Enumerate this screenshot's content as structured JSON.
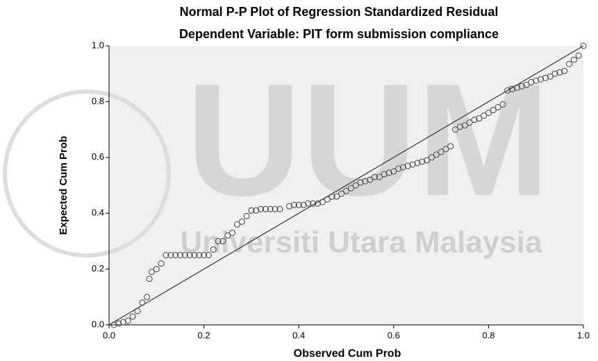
{
  "chart_data": {
    "type": "scatter",
    "title": "Normal P-P Plot of Regression Standardized Residual",
    "subtitle": "Dependent Variable: PIT form submission compliance",
    "x_label": "Observed Cum Prob",
    "y_label": "Expected Cum Prob",
    "watermark": [
      "UUM",
      "Universiti Utara Malaysia"
    ],
    "reference_line": true,
    "color": "#444444",
    "xlim": [
      0,
      1
    ],
    "ylim": [
      0,
      1
    ],
    "xticks": [
      {
        "value": 0,
        "label": "0.0"
      },
      0.2,
      0.4,
      0.6,
      0.8,
      {
        "value": 1,
        "label": "1.0"
      }
    ],
    "yticks": [
      {
        "value": 0,
        "label": "0.0"
      },
      0.2,
      0.4,
      0.6,
      0.8,
      {
        "value": 1,
        "label": "1.0"
      }
    ],
    "x": [
      0.01,
      0.02,
      0.03,
      0.04,
      0.05,
      0.06,
      0.07,
      0.08,
      0.085,
      0.09,
      0.1,
      0.11,
      0.12,
      0.13,
      0.14,
      0.15,
      0.16,
      0.17,
      0.18,
      0.19,
      0.2,
      0.21,
      0.22,
      0.23,
      0.24,
      0.25,
      0.26,
      0.27,
      0.28,
      0.29,
      0.3,
      0.31,
      0.32,
      0.33,
      0.34,
      0.35,
      0.36,
      0.38,
      0.39,
      0.4,
      0.41,
      0.42,
      0.43,
      0.44,
      0.45,
      0.46,
      0.47,
      0.48,
      0.49,
      0.5,
      0.51,
      0.52,
      0.53,
      0.54,
      0.55,
      0.56,
      0.57,
      0.58,
      0.59,
      0.6,
      0.61,
      0.62,
      0.63,
      0.64,
      0.65,
      0.66,
      0.67,
      0.68,
      0.69,
      0.7,
      0.71,
      0.72,
      0.73,
      0.74,
      0.75,
      0.76,
      0.77,
      0.78,
      0.79,
      0.8,
      0.81,
      0.82,
      0.83,
      0.84,
      0.85,
      0.86,
      0.87,
      0.88,
      0.89,
      0.9,
      0.91,
      0.92,
      0.93,
      0.94,
      0.95,
      0.96,
      0.97,
      0.98,
      0.99,
      1.0
    ],
    "values": [
      0.0,
      0.005,
      0.01,
      0.015,
      0.03,
      0.05,
      0.08,
      0.1,
      0.165,
      0.19,
      0.2,
      0.22,
      0.25,
      0.25,
      0.25,
      0.25,
      0.25,
      0.25,
      0.25,
      0.25,
      0.25,
      0.25,
      0.27,
      0.3,
      0.3,
      0.32,
      0.33,
      0.36,
      0.37,
      0.39,
      0.41,
      0.41,
      0.415,
      0.415,
      0.415,
      0.415,
      0.415,
      0.425,
      0.43,
      0.43,
      0.43,
      0.435,
      0.435,
      0.435,
      0.44,
      0.45,
      0.46,
      0.46,
      0.47,
      0.48,
      0.49,
      0.5,
      0.51,
      0.515,
      0.52,
      0.53,
      0.53,
      0.54,
      0.545,
      0.55,
      0.56,
      0.565,
      0.57,
      0.575,
      0.58,
      0.585,
      0.59,
      0.6,
      0.61,
      0.62,
      0.63,
      0.64,
      0.7,
      0.71,
      0.715,
      0.725,
      0.735,
      0.74,
      0.75,
      0.76,
      0.77,
      0.78,
      0.79,
      0.84,
      0.845,
      0.85,
      0.855,
      0.86,
      0.87,
      0.875,
      0.88,
      0.885,
      0.89,
      0.9,
      0.905,
      0.91,
      0.935,
      0.95,
      0.965,
      1.0
    ]
  }
}
